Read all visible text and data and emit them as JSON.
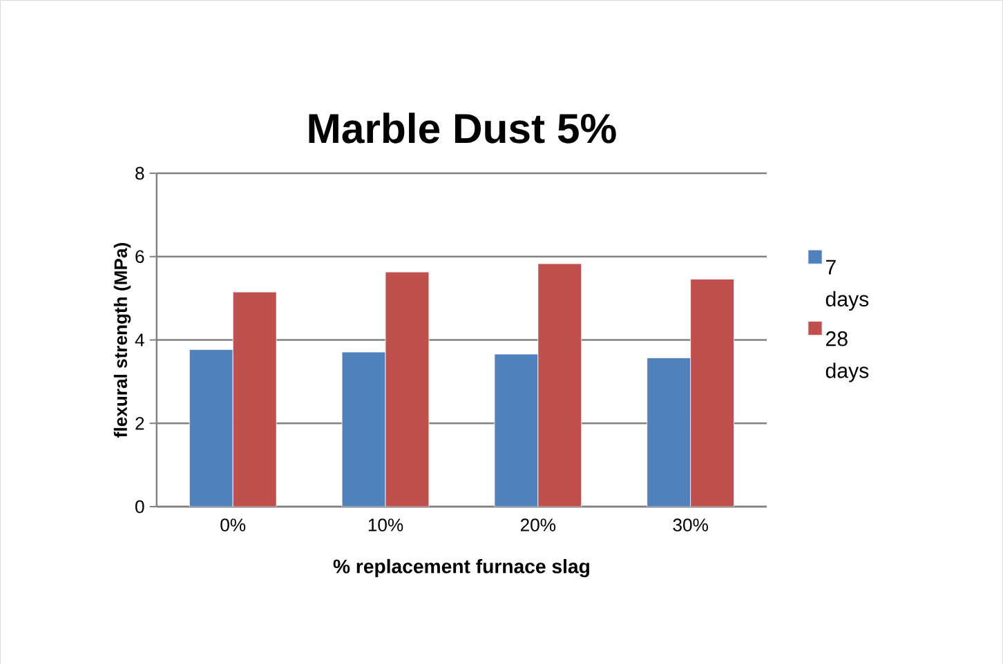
{
  "chart_data": {
    "type": "bar",
    "title": "Marble  Dust 5%",
    "xlabel": "% replacement furnace slag",
    "ylabel": "flexural  strength (MPa)",
    "categories": [
      "0%",
      "10%",
      "20%",
      "30%"
    ],
    "series": [
      {
        "name": "7 days",
        "color": "#4f81bd",
        "values": [
          3.77,
          3.71,
          3.66,
          3.57
        ]
      },
      {
        "name": "28 days",
        "color": "#c0504d",
        "values": [
          5.15,
          5.63,
          5.83,
          5.46
        ]
      }
    ],
    "ylim": [
      0,
      8
    ],
    "yticks": [
      0,
      2,
      4,
      6,
      8
    ],
    "grid": "y",
    "legend": "right"
  }
}
